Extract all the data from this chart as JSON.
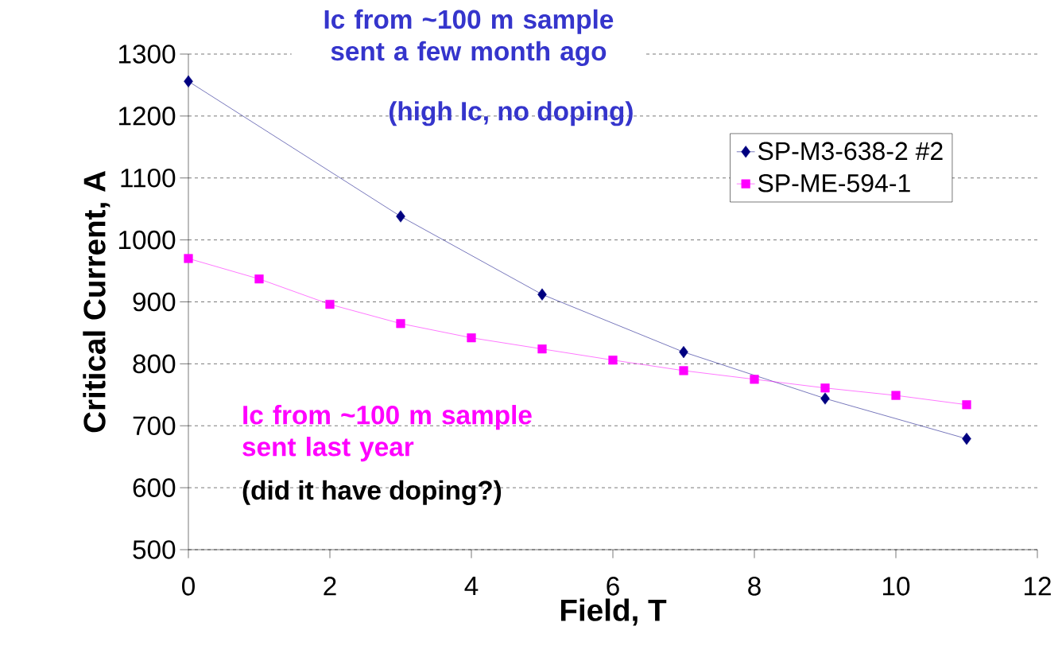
{
  "chart_data": {
    "type": "line",
    "xlabel": "Field, T",
    "ylabel": "Critical Current, A",
    "xlim": [
      0,
      12
    ],
    "xticks": [
      0,
      2,
      4,
      6,
      8,
      10,
      12
    ],
    "ylim": [
      500,
      1300
    ],
    "yticks": [
      500,
      600,
      700,
      800,
      900,
      1000,
      1100,
      1200,
      1300
    ],
    "grid": "y",
    "legend": "top right",
    "series": [
      {
        "name": "SP-M3-638-2 #2",
        "color": "#000080",
        "marker": "diamond",
        "x": [
          0,
          3,
          5,
          7,
          9,
          11
        ],
        "values": [
          1256,
          1038,
          912,
          819,
          744,
          679
        ]
      },
      {
        "name": "SP-ME-594-1",
        "color": "#ff00ff",
        "marker": "square",
        "x": [
          0,
          1,
          2,
          3,
          4,
          5,
          6,
          7,
          8,
          9,
          10,
          11
        ],
        "values": [
          970,
          937,
          896,
          865,
          842,
          824,
          806,
          789,
          775,
          761,
          749,
          734
        ]
      }
    ],
    "annotations": [
      "Ic from ~100 m sample sent a few month ago",
      "(high Ic, no doping)",
      "Ic from ~100 m sample sent last year",
      "(did it have doping?)"
    ]
  }
}
